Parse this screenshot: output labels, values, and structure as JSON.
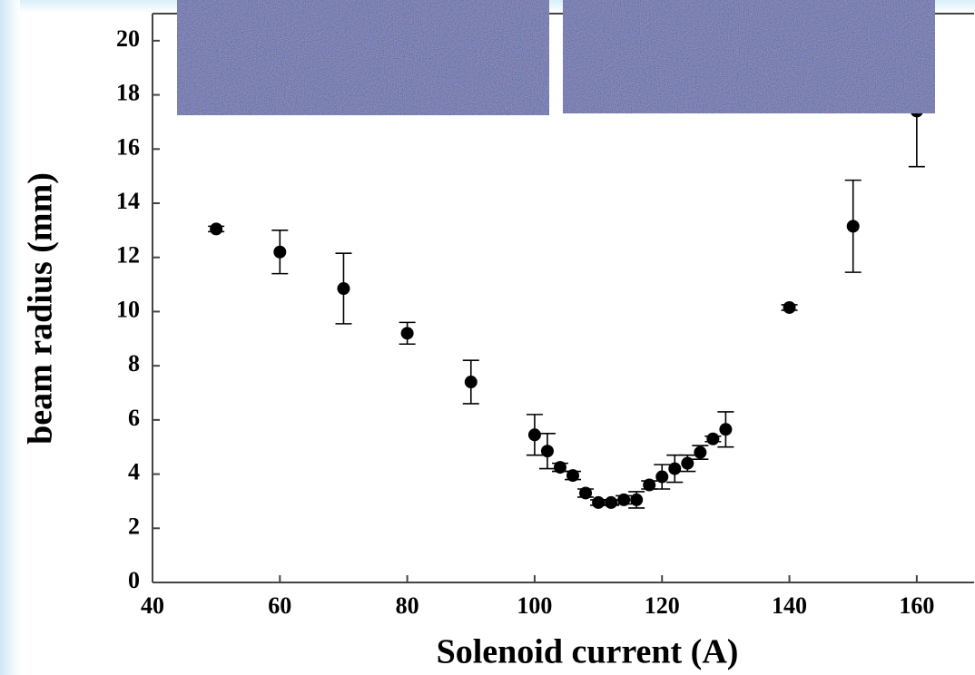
{
  "chart_data": {
    "type": "scatter",
    "x_label": "Solenoid current (A)",
    "y_label": "beam radius (mm)",
    "x": [
      50,
      60,
      70,
      80,
      90,
      100,
      102,
      104,
      106,
      108,
      110,
      112,
      114,
      116,
      118,
      120,
      122,
      124,
      126,
      128,
      130,
      140,
      150,
      160
    ],
    "series": [
      {
        "color": "#000000",
        "values": [
          13.05,
          12.2,
          10.85,
          9.2,
          7.4,
          5.45,
          4.85,
          4.25,
          3.95,
          3.3,
          2.95,
          2.95,
          3.05,
          3.05,
          3.6,
          3.9,
          4.2,
          4.4,
          4.8,
          5.3,
          5.65,
          10.15,
          13.15,
          17.4
        ],
        "errors": [
          0.1,
          0.8,
          1.3,
          0.4,
          0.8,
          0.75,
          0.65,
          0.15,
          0.15,
          0.15,
          0.1,
          0.1,
          0.15,
          0.3,
          0.15,
          0.45,
          0.5,
          0.3,
          0.25,
          0.1,
          0.65,
          0.1,
          1.7,
          2.05
        ]
      }
    ],
    "xlim": [
      40,
      169
    ],
    "ylim": [
      0,
      21
    ],
    "xticks": [
      40,
      60,
      80,
      100,
      120,
      140,
      160
    ],
    "yticks": [
      0,
      2,
      4,
      6,
      8,
      10,
      12,
      14,
      16,
      18,
      20
    ]
  }
}
